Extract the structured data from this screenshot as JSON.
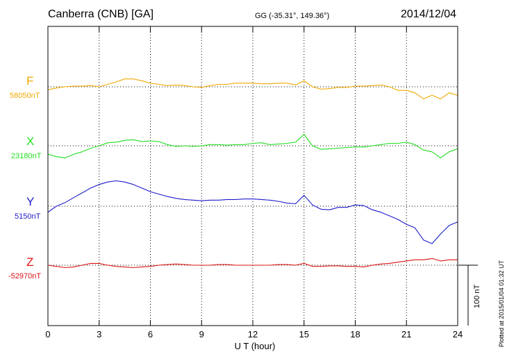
{
  "header": {
    "station": "Canberra (CNB)  [GA]",
    "coords": "GG (-35.31°, 149.36°)",
    "date": "2014/12/04"
  },
  "footer": {
    "plotted": "Plotted at 2015/01/04 01:32 UT",
    "scale": "100 nT"
  },
  "colors": {
    "F": "#f0a800",
    "X": "#22dd22",
    "Y": "#1a1acc",
    "Z": "#dd1111"
  },
  "chart_data": {
    "type": "line",
    "title": "Canberra (CNB)  [GA]",
    "xlabel": "U T (hour)",
    "ylabel": "",
    "xlim": [
      0,
      24
    ],
    "xticks": [
      "0",
      "3",
      "6",
      "9",
      "12",
      "15",
      "18",
      "21",
      "24"
    ],
    "scale_bar_nT": 100,
    "grid": true,
    "series": [
      {
        "name": "F",
        "baseline": "58050nT",
        "x": [
          0,
          0.5,
          1,
          1.5,
          2,
          2.5,
          3,
          3.5,
          4,
          4.5,
          5,
          5.5,
          6,
          6.5,
          7,
          7.5,
          8,
          8.5,
          9,
          9.5,
          10,
          10.5,
          11,
          11.5,
          12,
          12.5,
          13,
          13.5,
          14,
          14.5,
          15,
          15.5,
          16,
          16.5,
          17,
          17.5,
          18,
          18.5,
          19,
          19.5,
          20,
          20.5,
          21,
          21.5,
          22,
          22.5,
          23,
          23.5,
          24
        ],
        "values": [
          -5,
          -2,
          0,
          1,
          1,
          2,
          0,
          4,
          8,
          13,
          13,
          10,
          6,
          4,
          2,
          3,
          2,
          0,
          -1,
          2,
          4,
          4,
          6,
          6,
          6,
          5,
          5,
          6,
          6,
          3,
          10,
          0,
          -4,
          -3,
          -1,
          -1,
          1,
          1,
          2,
          3,
          0,
          -6,
          -6,
          -10,
          -20,
          -14,
          -20,
          -10,
          -14
        ]
      },
      {
        "name": "X",
        "baseline": "23180nT",
        "x": [
          0,
          0.5,
          1,
          1.5,
          2,
          2.5,
          3,
          3.5,
          4,
          4.5,
          5,
          5.5,
          6,
          6.5,
          7,
          7.5,
          8,
          8.5,
          9,
          9.5,
          10,
          10.5,
          11,
          11.5,
          12,
          12.5,
          13,
          13.5,
          14,
          14.5,
          15,
          15.5,
          16,
          16.5,
          17,
          17.5,
          18,
          18.5,
          19,
          19.5,
          20,
          20.5,
          21,
          21.5,
          22,
          22.5,
          23,
          23.5,
          24
        ],
        "values": [
          -14,
          -18,
          -20,
          -14,
          -10,
          -4,
          0,
          5,
          6,
          9,
          10,
          7,
          8,
          7,
          2,
          -1,
          0,
          -1,
          0,
          2,
          2,
          1,
          2,
          2,
          4,
          5,
          2,
          3,
          4,
          6,
          19,
          0,
          -6,
          -5,
          -4,
          -3,
          -2,
          -2,
          0,
          2,
          4,
          4,
          6,
          2,
          -7,
          -10,
          -20,
          -10,
          -5
        ]
      },
      {
        "name": "Y",
        "baseline": "5150nT",
        "x": [
          0,
          0.5,
          1,
          1.5,
          2,
          2.5,
          3,
          3.5,
          4,
          4.5,
          5,
          5.5,
          6,
          6.5,
          7,
          7.5,
          8,
          8.5,
          9,
          9.5,
          10,
          10.5,
          11,
          11.5,
          12,
          12.5,
          13,
          13.5,
          14,
          14.5,
          15,
          15.5,
          16,
          16.5,
          17,
          17.5,
          18,
          18.5,
          19,
          19.5,
          20,
          20.5,
          21,
          21.5,
          22,
          22.5,
          23,
          23.5,
          24
        ],
        "values": [
          -10,
          0,
          6,
          14,
          22,
          30,
          36,
          40,
          42,
          40,
          36,
          30,
          24,
          20,
          16,
          13,
          11,
          10,
          9,
          10,
          10,
          11,
          11,
          12,
          12,
          11,
          10,
          8,
          5,
          4,
          18,
          2,
          -5,
          -6,
          -2,
          -2,
          2,
          1,
          -6,
          -10,
          -16,
          -22,
          -30,
          -36,
          -56,
          -62,
          -46,
          -32,
          -26
        ]
      },
      {
        "name": "Z",
        "baseline": "-52970nT",
        "x": [
          0,
          0.5,
          1,
          1.5,
          2,
          2.5,
          3,
          3.5,
          4,
          4.5,
          5,
          5.5,
          6,
          6.5,
          7,
          7.5,
          8,
          8.5,
          9,
          9.5,
          10,
          10.5,
          11,
          11.5,
          12,
          12.5,
          13,
          13.5,
          14,
          14.5,
          15,
          15.5,
          16,
          16.5,
          17,
          17.5,
          18,
          18.5,
          19,
          19.5,
          20,
          20.5,
          21,
          21.5,
          22,
          22.5,
          23,
          23.5,
          24
        ],
        "values": [
          0,
          -2,
          -4,
          -3,
          0,
          3,
          3,
          0,
          -2,
          -3,
          -4,
          -3,
          -2,
          0,
          1,
          2,
          1,
          0,
          0,
          0,
          1,
          1,
          0,
          0,
          0,
          0,
          0,
          1,
          1,
          0,
          3,
          -2,
          -2,
          -1,
          -1,
          -2,
          -2,
          -3,
          0,
          2,
          3,
          5,
          7,
          9,
          9,
          11,
          7,
          9,
          9
        ]
      }
    ]
  }
}
